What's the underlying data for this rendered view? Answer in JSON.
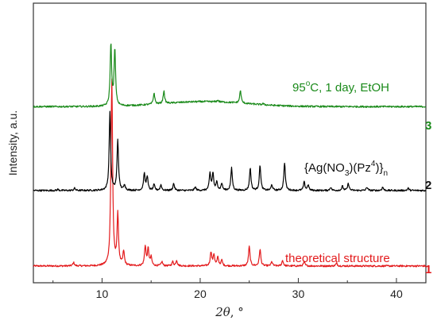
{
  "chart_data": {
    "type": "line",
    "xlabel_parts": {
      "symbol": "2θ",
      "unit": ", °"
    },
    "ylabel": "Intensity, a.u.",
    "xlim": [
      3,
      43
    ],
    "xticks": [
      10,
      20,
      30,
      40
    ],
    "grid": false,
    "legend": "none",
    "series": [
      {
        "label_number": "1",
        "annotation": "theoretical structure",
        "color": "#e31a1c",
        "baseline": 0.06,
        "peaks": [
          [
            7.1,
            0.012
          ],
          [
            10.9,
            0.1
          ],
          [
            11.0,
            0.62
          ],
          [
            11.6,
            0.18
          ],
          [
            12.2,
            0.05
          ],
          [
            14.4,
            0.07
          ],
          [
            14.7,
            0.06
          ],
          [
            15.0,
            0.03
          ],
          [
            16.1,
            0.015
          ],
          [
            17.2,
            0.015
          ],
          [
            17.6,
            0.02
          ],
          [
            21.1,
            0.05
          ],
          [
            21.4,
            0.04
          ],
          [
            21.8,
            0.03
          ],
          [
            22.2,
            0.02
          ],
          [
            25.0,
            0.07
          ],
          [
            26.1,
            0.06
          ],
          [
            27.3,
            0.015
          ],
          [
            28.4,
            0.02
          ],
          [
            30.6,
            0.015
          ],
          [
            33.9,
            0.01
          ]
        ]
      },
      {
        "label_number": "2",
        "annotation_parts": {
          "t1": "{Ag(NO",
          "s1": "3",
          "t2": ")(Pz",
          "p1": "4",
          "t3": ")}",
          "s2": "n"
        },
        "color": "#000000",
        "baseline": 0.33,
        "peaks": [
          [
            5.5,
            0.004
          ],
          [
            7.2,
            0.008
          ],
          [
            10.8,
            0.28
          ],
          [
            11.6,
            0.18
          ],
          [
            12.3,
            0.02
          ],
          [
            14.3,
            0.06
          ],
          [
            14.6,
            0.05
          ],
          [
            15.3,
            0.02
          ],
          [
            16.0,
            0.02
          ],
          [
            17.3,
            0.025
          ],
          [
            19.5,
            0.012
          ],
          [
            21.0,
            0.06
          ],
          [
            21.3,
            0.06
          ],
          [
            21.7,
            0.03
          ],
          [
            22.2,
            0.025
          ],
          [
            23.2,
            0.08
          ],
          [
            25.1,
            0.08
          ],
          [
            26.1,
            0.09
          ],
          [
            27.3,
            0.02
          ],
          [
            28.6,
            0.1
          ],
          [
            30.6,
            0.03
          ],
          [
            31.0,
            0.02
          ],
          [
            33.3,
            0.012
          ],
          [
            34.5,
            0.015
          ],
          [
            35.1,
            0.025
          ],
          [
            37.0,
            0.012
          ],
          [
            38.6,
            0.012
          ],
          [
            41.2,
            0.008
          ]
        ]
      },
      {
        "label_number": "3",
        "annotation_parts": {
          "t1": "95",
          "sup": "o",
          "t2": "C, 1 day, EtOH"
        },
        "color": "#1a8a1a",
        "baseline": 0.63,
        "peaks": [
          [
            10.9,
            0.22
          ],
          [
            11.3,
            0.2
          ],
          [
            15.3,
            0.04
          ],
          [
            16.3,
            0.045
          ],
          [
            21.8,
            0.006
          ],
          [
            24.1,
            0.045
          ],
          [
            26.4,
            0.004
          ]
        ],
        "hump": [
          [
            20.5,
            6.0,
            0.018
          ]
        ]
      }
    ]
  }
}
